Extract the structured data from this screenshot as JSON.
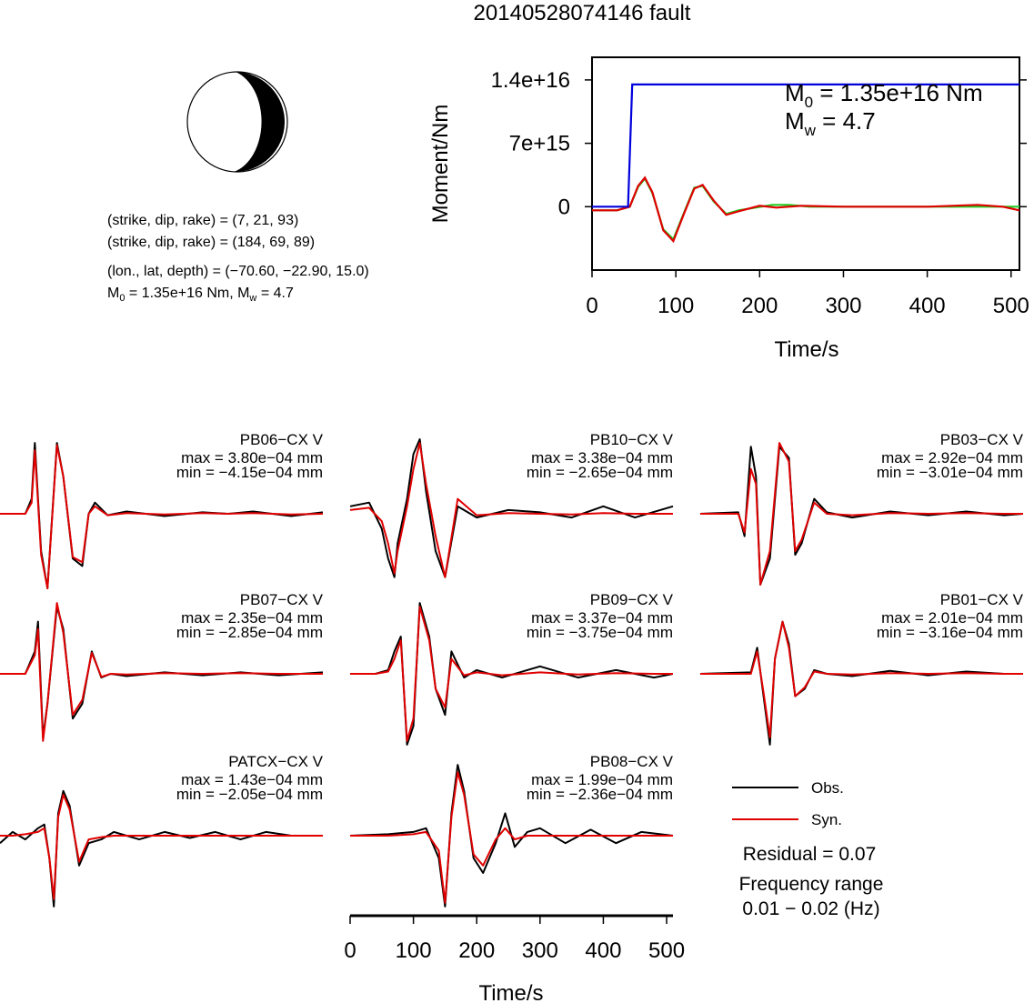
{
  "title": "20140528074146 fault",
  "mechanism": {
    "planes": [
      "(strike, dip, rake) = (7, 21, 93)",
      "(strike, dip, rake) = (184, 69, 89)"
    ],
    "location": "(lon., lat, depth) = (−70.60, −22.90, 15.0)",
    "moment_line": {
      "m": "M",
      "sub": "0",
      "rest1": " = 1.35e+16 Nm, M",
      "sub2": "w",
      "rest2": " = 4.7"
    }
  },
  "colors": {
    "observed": "#000000",
    "synthetic": "#e00000",
    "cumulative_moment": "#0000dd",
    "moment_rate_synthetic": "#22cc22",
    "moment_rate_red": "#e00000"
  },
  "chart_data": [
    {
      "type": "line",
      "name": "moment_function",
      "xlabel": "Time/s",
      "ylabel": "Moment/Nm",
      "xlim": [
        0,
        510
      ],
      "ylim": [
        -7000000000000000.0,
        1.65e+16
      ],
      "xticks": [
        "0",
        "100",
        "200",
        "300",
        "400",
        "500"
      ],
      "yticks": [
        "0",
        "7e+15",
        "1.4e+16"
      ],
      "annotation": {
        "m0_label": "M",
        "m0_sub": "0",
        "m0_value": " = 1.35e+16 Nm",
        "mw_label": "M",
        "mw_sub": "w",
        "mw_value": " = 4.7"
      },
      "series": [
        {
          "color": "#0000dd",
          "x": [
            0,
            43,
            48,
            510
          ],
          "y": [
            0,
            0,
            1.35e+16,
            1.35e+16
          ]
        },
        {
          "color": "#22cc22",
          "x": [
            0,
            30,
            45,
            55,
            63,
            72,
            85,
            97,
            110,
            122,
            132,
            145,
            160,
            175,
            195,
            215,
            235,
            260,
            300,
            350,
            400,
            450,
            510
          ],
          "y": [
            -400000000000000.0,
            -400000000000000.0,
            0,
            2200000000000000.0,
            3100000000000000.0,
            1500000000000000.0,
            -2500000000000000.0,
            -3600000000000000.0,
            -600000000000000.0,
            2100000000000000.0,
            2300000000000000.0,
            600000000000000.0,
            -800000000000000.0,
            -400000000000000.0,
            -100000000000000.0,
            200000000000000.0,
            200000000000000.0,
            0,
            0,
            0,
            0,
            0,
            0
          ]
        },
        {
          "color": "#e00000",
          "x": [
            0,
            30,
            45,
            55,
            63,
            72,
            85,
            97,
            110,
            122,
            132,
            145,
            160,
            175,
            200,
            220,
            250,
            300,
            350,
            400,
            460,
            490,
            510
          ],
          "y": [
            -400000000000000.0,
            -400000000000000.0,
            0,
            2300000000000000.0,
            3200000000000000.0,
            1600000000000000.0,
            -2600000000000000.0,
            -3800000000000000.0,
            -700000000000000.0,
            2000000000000000.0,
            2400000000000000.0,
            700000000000000.0,
            -900000000000000.0,
            -500000000000000.0,
            100000000000000.0,
            -100000000000000.0,
            100000000000000.0,
            0,
            0,
            0,
            200000000000000.0,
            0,
            -400000000000000.0
          ]
        }
      ]
    },
    {
      "type": "line",
      "name": "waveforms",
      "xlabel": "Time/s",
      "xlim": [
        0,
        510
      ],
      "xticks": [
        "0",
        "100",
        "200",
        "300",
        "400",
        "500"
      ],
      "legend": {
        "observed": "Obs.",
        "synthetic": "Syn."
      },
      "residual": "Residual = 0.07",
      "frequency_title": "Frequency range",
      "frequency_range": "0.01 − 0.02 (Hz)",
      "stations": [
        {
          "name": "PB06−CX V",
          "max": "max = 3.80e−04 mm",
          "min": "min = −4.15e−04 mm",
          "obs": {
            "x": [
              0,
              40,
              50,
              55,
              60,
              65,
              75,
              90,
              100,
              115,
              130,
              140,
              150,
              170,
              200,
              260,
              320,
              360,
              400,
              460,
              510
            ],
            "y": [
              0,
              0,
              0.2,
              0.95,
              0.2,
              -0.5,
              -1.0,
              0.95,
              0.5,
              -0.6,
              -0.7,
              0.0,
              0.15,
              -0.02,
              0.03,
              -0.03,
              0.02,
              0,
              0.03,
              -0.03,
              0.02
            ]
          },
          "syn": {
            "x": [
              0,
              40,
              50,
              55,
              60,
              65,
              75,
              90,
              100,
              115,
              130,
              140,
              150,
              170,
              200,
              260,
              320,
              360,
              400,
              460,
              510
            ],
            "y": [
              0,
              0,
              0.15,
              0.85,
              0.15,
              -0.55,
              -1.0,
              0.92,
              0.5,
              -0.58,
              -0.65,
              0.0,
              0.1,
              -0.02,
              0.01,
              -0.01,
              0.01,
              0,
              0.01,
              -0.01,
              0
            ]
          }
        },
        {
          "name": "PB10−CX V",
          "max": "max = 3.38e−04 mm",
          "min": "min = −2.65e−04 mm",
          "obs": {
            "x": [
              0,
              30,
              50,
              60,
              70,
              75,
              90,
              100,
              110,
              120,
              135,
              150,
              170,
              200,
              250,
              300,
              350,
              400,
              450,
              510
            ],
            "y": [
              0.1,
              0.15,
              -0.2,
              -0.6,
              -0.85,
              -0.4,
              0.2,
              0.8,
              1.0,
              0.3,
              -0.5,
              -0.85,
              0.1,
              -0.05,
              0.05,
              0.02,
              -0.05,
              0.1,
              -0.05,
              0.1
            ]
          },
          "syn": {
            "x": [
              0,
              30,
              50,
              60,
              70,
              75,
              90,
              100,
              110,
              120,
              135,
              150,
              170,
              200,
              250,
              300,
              350,
              400,
              450,
              510
            ],
            "y": [
              0.05,
              0.08,
              -0.1,
              -0.4,
              -0.8,
              -0.5,
              0.1,
              0.6,
              0.95,
              0.4,
              -0.3,
              -0.85,
              0.2,
              -0.02,
              0.01,
              0,
              -0.01,
              0.01,
              0,
              0
            ]
          }
        },
        {
          "name": "PB03−CX V",
          "max": "max = 2.92e−04 mm",
          "min": "min = −3.01e−04 mm",
          "obs": {
            "x": [
              0,
              60,
              70,
              80,
              88,
              95,
              110,
              125,
              140,
              150,
              160,
              180,
              200,
              240,
              300,
              360,
              420,
              480,
              510
            ],
            "y": [
              0,
              0.02,
              -0.3,
              0.9,
              0.5,
              -0.95,
              -0.6,
              0.9,
              0.75,
              -0.55,
              -0.4,
              0.2,
              0.02,
              -0.05,
              0.03,
              -0.02,
              0.03,
              -0.02,
              0
            ]
          },
          "syn": {
            "x": [
              0,
              60,
              70,
              80,
              88,
              95,
              110,
              125,
              140,
              150,
              160,
              180,
              200,
              240,
              300,
              360,
              420,
              480,
              510
            ],
            "y": [
              0,
              0.0,
              -0.25,
              0.6,
              0.4,
              -0.95,
              -0.5,
              0.95,
              0.7,
              -0.5,
              -0.35,
              0.15,
              0.0,
              -0.02,
              0.01,
              0,
              0.01,
              0,
              0
            ]
          }
        },
        {
          "name": "PB07−CX V",
          "max": "max = 2.35e−04 mm",
          "min": "min = −2.85e−04 mm",
          "obs": {
            "x": [
              0,
              40,
              55,
              60,
              68,
              75,
              90,
              100,
              115,
              130,
              145,
              160,
              175,
              200,
              260,
              320,
              380,
              440,
              510
            ],
            "y": [
              0,
              0,
              0.3,
              0.7,
              -0.85,
              -0.4,
              0.9,
              0.6,
              -0.6,
              -0.4,
              0.3,
              -0.05,
              0.0,
              -0.03,
              0.02,
              -0.02,
              0.02,
              -0.02,
              0.02
            ]
          },
          "syn": {
            "x": [
              0,
              40,
              55,
              60,
              68,
              75,
              90,
              100,
              115,
              130,
              145,
              160,
              175,
              200,
              260,
              320,
              380,
              440,
              510
            ],
            "y": [
              0,
              0,
              0.25,
              0.6,
              -0.9,
              -0.4,
              0.95,
              0.55,
              -0.55,
              -0.35,
              0.28,
              -0.04,
              0.0,
              -0.01,
              0.01,
              0,
              0.01,
              0,
              0
            ]
          }
        },
        {
          "name": "PB09−CX V",
          "max": "max = 3.37e−04 mm",
          "min": "min = −3.75e−04 mm",
          "obs": {
            "x": [
              0,
              40,
              60,
              70,
              80,
              90,
              100,
              110,
              125,
              135,
              150,
              160,
              180,
              200,
              240,
              300,
              360,
              420,
              480,
              510
            ],
            "y": [
              0,
              0,
              0.05,
              0.3,
              0.5,
              -0.95,
              -0.7,
              0.95,
              0.5,
              -0.2,
              -0.55,
              0.3,
              -0.05,
              0.05,
              -0.05,
              0.1,
              -0.05,
              0.05,
              -0.05,
              0
            ]
          },
          "syn": {
            "x": [
              0,
              40,
              60,
              70,
              80,
              90,
              100,
              110,
              125,
              135,
              150,
              160,
              180,
              200,
              240,
              300,
              360,
              420,
              480,
              510
            ],
            "y": [
              0,
              0,
              0.03,
              0.2,
              0.45,
              -0.9,
              -0.6,
              0.9,
              0.45,
              -0.2,
              -0.45,
              0.2,
              -0.02,
              0.02,
              -0.02,
              0.02,
              -0.01,
              0.01,
              0,
              0
            ]
          }
        },
        {
          "name": "PB01−CX V",
          "max": "max = 2.01e−04 mm",
          "min": "min = −3.16e−04 mm",
          "obs": {
            "x": [
              0,
              80,
              90,
              100,
              110,
              118,
              130,
              140,
              150,
              165,
              180,
              200,
              240,
              300,
              360,
              420,
              480,
              510
            ],
            "y": [
              0,
              0.02,
              0.35,
              -0.3,
              -0.95,
              0.2,
              0.7,
              0.4,
              -0.3,
              -0.2,
              0.05,
              0.0,
              -0.03,
              0.04,
              -0.02,
              0.03,
              0.0,
              0.0
            ]
          },
          "syn": {
            "x": [
              0,
              80,
              90,
              100,
              110,
              118,
              130,
              140,
              150,
              165,
              180,
              200,
              240,
              300,
              360,
              420,
              480,
              510
            ],
            "y": [
              0,
              0,
              0.3,
              -0.25,
              -0.85,
              0.2,
              0.7,
              0.35,
              -0.3,
              -0.18,
              0.03,
              0.0,
              -0.01,
              0.01,
              0,
              0.01,
              0,
              0
            ]
          }
        },
        {
          "name": "PATCX−CX V",
          "max": "max = 1.43e−04 mm",
          "min": "min = −2.05e−04 mm",
          "obs": {
            "x": [
              0,
              20,
              40,
              60,
              70,
              78,
              85,
              92,
              100,
              110,
              125,
              140,
              160,
              180,
              220,
              260,
              300,
              340,
              380,
              420,
              460,
              510
            ],
            "y": [
              -0.1,
              0.05,
              -0.05,
              0.1,
              0.15,
              -0.3,
              -0.95,
              0.3,
              0.6,
              0.4,
              -0.4,
              -0.1,
              -0.05,
              0.05,
              -0.05,
              0.05,
              -0.03,
              0.05,
              -0.05,
              0.05,
              0.0,
              0.0
            ]
          },
          "syn": {
            "x": [
              0,
              20,
              40,
              60,
              70,
              78,
              85,
              92,
              100,
              110,
              125,
              140,
              160,
              180,
              220,
              260,
              300,
              340,
              380,
              420,
              460,
              510
            ],
            "y": [
              0,
              0,
              0.02,
              0.05,
              0.1,
              -0.3,
              -0.85,
              0.25,
              0.55,
              0.35,
              -0.35,
              -0.05,
              -0.02,
              0.0,
              0.0,
              0.0,
              0.0,
              0.0,
              0.0,
              0.0,
              0.0,
              0.0
            ]
          }
        },
        {
          "name": "PB08−CX V",
          "max": "max = 1.99e−04 mm",
          "min": "min = −2.36e−04 mm",
          "obs": {
            "x": [
              0,
              60,
              100,
              120,
              140,
              150,
              160,
              170,
              180,
              195,
              210,
              230,
              245,
              260,
              280,
              300,
              340,
              380,
              420,
              460,
              510
            ],
            "y": [
              0,
              0.02,
              0.05,
              0.1,
              -0.3,
              -0.95,
              0.3,
              0.95,
              0.6,
              -0.3,
              -0.5,
              -0.1,
              0.3,
              -0.15,
              0.05,
              0.1,
              -0.1,
              0.08,
              -0.1,
              0.05,
              0.0
            ]
          },
          "syn": {
            "x": [
              0,
              60,
              100,
              120,
              140,
              150,
              160,
              170,
              180,
              195,
              210,
              230,
              245,
              260,
              280,
              300,
              340,
              380,
              420,
              460,
              510
            ],
            "y": [
              0,
              0,
              0.02,
              0.05,
              -0.2,
              -0.9,
              0.25,
              0.85,
              0.55,
              -0.25,
              -0.4,
              -0.05,
              0.1,
              -0.05,
              0.0,
              0.0,
              0.0,
              0.0,
              0.0,
              0.0,
              0.0
            ]
          }
        }
      ]
    }
  ]
}
